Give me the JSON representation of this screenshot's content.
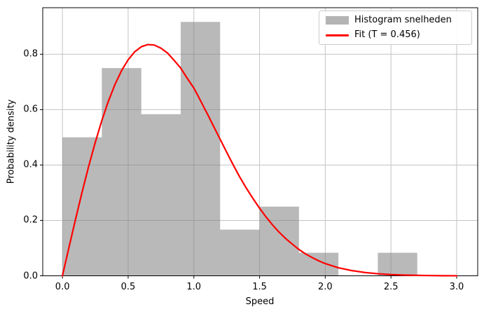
{
  "chart_data": {
    "type": "histogram+line",
    "title": "",
    "xlabel": "Speed",
    "ylabel": "Probability density",
    "xlim": [
      -0.15,
      3.16
    ],
    "ylim": [
      0,
      0.968
    ],
    "grid": true,
    "x_ticks": [
      0.0,
      0.5,
      1.0,
      1.5,
      2.0,
      2.5,
      3.0
    ],
    "x_tick_labels": [
      "0.0",
      "0.5",
      "1.0",
      "1.5",
      "2.0",
      "2.5",
      "3.0"
    ],
    "y_ticks": [
      0.0,
      0.2,
      0.4,
      0.6,
      0.8
    ],
    "y_tick_labels": [
      "0.0",
      "0.2",
      "0.4",
      "0.6",
      "0.8"
    ],
    "legend": {
      "position": "upper right",
      "entries": [
        {
          "label": "Histogram snelheden",
          "type": "patch",
          "color": "#b4b4b4"
        },
        {
          "label": "Fit (T = 0.456)",
          "type": "line",
          "color": "#ff0000"
        }
      ]
    },
    "histogram": {
      "name": "Histogram snelheden",
      "bin_edges": [
        0.0,
        0.3,
        0.6,
        0.9,
        1.2,
        1.5,
        1.8,
        2.1,
        2.4,
        2.7,
        3.0
      ],
      "densities": [
        0.5,
        0.75,
        0.5833,
        0.9167,
        0.1667,
        0.25,
        0.0833,
        0.0,
        0.0833,
        0.0
      ],
      "color": "#808080",
      "opacity": 0.55
    },
    "fit": {
      "name": "Fit (T = 0.456)",
      "T": 0.456,
      "color": "#ff0000",
      "x": [
        0.0,
        0.05,
        0.1,
        0.15,
        0.2,
        0.25,
        0.3,
        0.35,
        0.4,
        0.45,
        0.5,
        0.55,
        0.6,
        0.65,
        0.7,
        0.75,
        0.8,
        0.85,
        0.9,
        0.95,
        1.0,
        1.05,
        1.1,
        1.15,
        1.2,
        1.25,
        1.3,
        1.35,
        1.4,
        1.45,
        1.5,
        1.55,
        1.6,
        1.65,
        1.7,
        1.75,
        1.8,
        1.85,
        1.9,
        1.95,
        2.0,
        2.1,
        2.2,
        2.3,
        2.4,
        2.5,
        2.6,
        2.7,
        2.8,
        2.9,
        3.0
      ],
      "y": [
        0.0,
        0.103,
        0.205,
        0.303,
        0.396,
        0.482,
        0.561,
        0.631,
        0.691,
        0.741,
        0.78,
        0.809,
        0.827,
        0.835,
        0.833,
        0.822,
        0.804,
        0.778,
        0.75,
        0.713,
        0.678,
        0.633,
        0.587,
        0.54,
        0.493,
        0.446,
        0.4,
        0.356,
        0.316,
        0.279,
        0.244,
        0.212,
        0.183,
        0.157,
        0.134,
        0.114,
        0.095,
        0.079,
        0.066,
        0.054,
        0.044,
        0.029,
        0.019,
        0.012,
        0.0074,
        0.0044,
        0.0026,
        0.0015,
        0.0008,
        0.0004,
        0.0002
      ]
    },
    "style": {
      "grid_color": "#c4c4c4",
      "spine_color": "#000000",
      "background": "#ffffff",
      "curve_width": 2.2
    }
  }
}
